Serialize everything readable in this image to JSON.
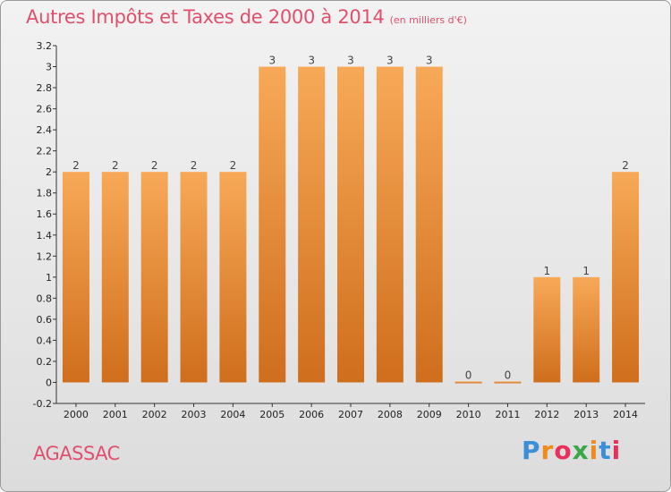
{
  "title": "Autres Impôts et Taxes de 2000 à 2014",
  "subtitle": "(en milliers d'€)",
  "commune": "AGASSAC",
  "logo": {
    "text": "Proxiti",
    "letter_colors": [
      "#3a8fd8",
      "#f08a1c",
      "#e8305a",
      "#3aa84a",
      "#f08a1c",
      "#3a8fd8",
      "#e8305a"
    ]
  },
  "colors": {
    "bar_light": "#f7a957",
    "bar_dark": "#cf6e1c",
    "title": "#e0506e",
    "axis": "#333333"
  },
  "chart_data": {
    "type": "bar",
    "title": "Autres Impôts et Taxes de 2000 à 2014",
    "subtitle": "(en milliers d'€)",
    "xlabel": "",
    "ylabel": "",
    "categories": [
      "2000",
      "2001",
      "2002",
      "2003",
      "2004",
      "2005",
      "2006",
      "2007",
      "2008",
      "2009",
      "2010",
      "2011",
      "2012",
      "2013",
      "2014"
    ],
    "values": [
      2,
      2,
      2,
      2,
      2,
      3,
      3,
      3,
      3,
      3,
      0,
      0,
      1,
      1,
      2
    ],
    "data_labels": [
      "2",
      "2",
      "2",
      "2",
      "2",
      "3",
      "3",
      "3",
      "3",
      "3",
      "0",
      "0",
      "1",
      "1",
      "2"
    ],
    "ylim": [
      -0.2,
      3.2
    ],
    "yticks": [
      -0.2,
      0,
      0.2,
      0.4,
      0.6,
      0.8,
      1,
      1.2,
      1.4,
      1.6,
      1.8,
      2,
      2.2,
      2.4,
      2.6,
      2.8,
      3,
      3.2
    ],
    "ytick_labels": [
      "-0.2",
      "0",
      "0.2",
      "0.4",
      "0.6",
      "0.8",
      "1",
      "1.2",
      "1.4",
      "1.6",
      "1.8",
      "2",
      "2.2",
      "2.4",
      "2.6",
      "2.8",
      "3",
      "3.2"
    ],
    "grid": false,
    "legend": "none"
  }
}
